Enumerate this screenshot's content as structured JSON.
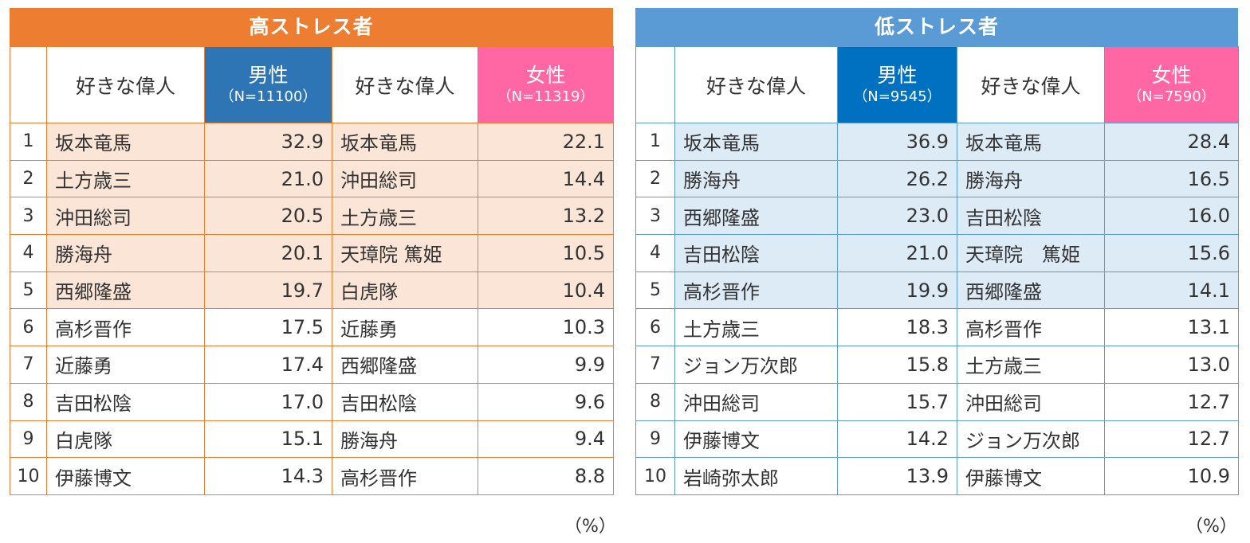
{
  "chart_data": [
    {
      "type": "table",
      "title": "高ストレス者",
      "columns": [
        "好きな偉人",
        "男性",
        "（N=11100）",
        "好きな偉人",
        "女性",
        "（N=11319）"
      ],
      "rows": [
        {
          "rank": "1",
          "male_name": "坂本竜馬",
          "male_value": "32.9",
          "female_name": "坂本竜馬",
          "female_value": "22.1"
        },
        {
          "rank": "2",
          "male_name": "土方歳三",
          "male_value": "21.0",
          "female_name": "沖田総司",
          "female_value": "14.4"
        },
        {
          "rank": "3",
          "male_name": "沖田総司",
          "male_value": "20.5",
          "female_name": "土方歳三",
          "female_value": "13.2"
        },
        {
          "rank": "4",
          "male_name": "勝海舟",
          "male_value": "20.1",
          "female_name": "天璋院 篤姫",
          "female_value": "10.5"
        },
        {
          "rank": "5",
          "male_name": "西郷隆盛",
          "male_value": "19.7",
          "female_name": "白虎隊",
          "female_value": "10.4"
        },
        {
          "rank": "6",
          "male_name": "高杉晋作",
          "male_value": "17.5",
          "female_name": "近藤勇",
          "female_value": "10.3"
        },
        {
          "rank": "7",
          "male_name": "近藤勇",
          "male_value": "17.4",
          "female_name": "西郷隆盛",
          "female_value": "9.9"
        },
        {
          "rank": "8",
          "male_name": "吉田松陰",
          "male_value": "17.0",
          "female_name": "吉田松陰",
          "female_value": "9.6"
        },
        {
          "rank": "9",
          "male_name": "白虎隊",
          "male_value": "15.1",
          "female_name": "勝海舟",
          "female_value": "9.4"
        },
        {
          "rank": "10",
          "male_name": "伊藤博文",
          "male_value": "14.3",
          "female_name": "高杉晋作",
          "female_value": "8.8"
        }
      ],
      "unit": "（%）",
      "colors": {
        "title": "#ed7d31",
        "male_header": "#2e75b6",
        "female_header": "#ff66a3",
        "highlight": "#fbe5d6"
      }
    },
    {
      "type": "table",
      "title": "低ストレス者",
      "columns": [
        "好きな偉人",
        "男性",
        "（N=9545）",
        "好きな偉人",
        "女性",
        "（N=7590）"
      ],
      "rows": [
        {
          "rank": "1",
          "male_name": "坂本竜馬",
          "male_value": "36.9",
          "female_name": "坂本竜馬",
          "female_value": "28.4"
        },
        {
          "rank": "2",
          "male_name": "勝海舟",
          "male_value": "26.2",
          "female_name": "勝海舟",
          "female_value": "16.5"
        },
        {
          "rank": "3",
          "male_name": "西郷隆盛",
          "male_value": "23.0",
          "female_name": "吉田松陰",
          "female_value": "16.0"
        },
        {
          "rank": "4",
          "male_name": "吉田松陰",
          "male_value": "21.0",
          "female_name": "天璋院　篤姫",
          "female_value": "15.6"
        },
        {
          "rank": "5",
          "male_name": "高杉晋作",
          "male_value": "19.9",
          "female_name": "西郷隆盛",
          "female_value": "14.1"
        },
        {
          "rank": "6",
          "male_name": "土方歳三",
          "male_value": "18.3",
          "female_name": "高杉晋作",
          "female_value": "13.1"
        },
        {
          "rank": "7",
          "male_name": "ジョン万次郎",
          "male_value": "15.8",
          "female_name": "土方歳三",
          "female_value": "13.0"
        },
        {
          "rank": "8",
          "male_name": "沖田総司",
          "male_value": "15.7",
          "female_name": "沖田総司",
          "female_value": "12.7"
        },
        {
          "rank": "9",
          "male_name": "伊藤博文",
          "male_value": "14.2",
          "female_name": "ジョン万次郎",
          "female_value": "12.7"
        },
        {
          "rank": "10",
          "male_name": "岩崎弥太郎",
          "male_value": "13.9",
          "female_name": "伊藤博文",
          "female_value": "10.9"
        }
      ],
      "unit": "（%）",
      "colors": {
        "title": "#5b9bd5",
        "male_header": "#0070c0",
        "female_header": "#ff66a3",
        "highlight": "#ddebf7"
      }
    }
  ]
}
